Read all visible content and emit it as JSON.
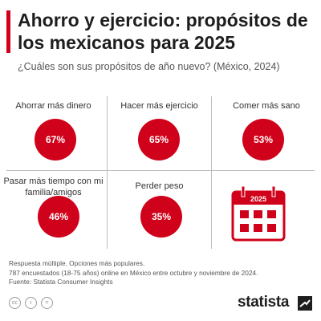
{
  "header": {
    "title": "Ahorro y ejercicio: propósitos de los mexicanos para 2025",
    "subtitle": "¿Cuáles son sus propósitos de año nuevo? (México, 2024)"
  },
  "chart_data": {
    "type": "bubble",
    "categories": [
      "Ahorrar más dinero",
      "Hacer más ejercicio",
      "Comer más sano",
      "Pasar más tiempo con mi familia/amigos",
      "Perder peso"
    ],
    "values": [
      67,
      65,
      53,
      46,
      35
    ],
    "value_labels": [
      "67%",
      "65%",
      "53%",
      "46%",
      "35%"
    ],
    "unit": "%",
    "color": "#d0021b"
  },
  "calendar": {
    "year_label": "2025"
  },
  "notes": {
    "line1": "Respuesta múltiple. Opciones más populares.",
    "line2": "787 encuestados (18-75 años) online en México entre octubre y noviembre de 2024.",
    "line3": "Fuente: Statista Consumer Insights"
  },
  "footer": {
    "icons": [
      "cc-icon",
      "person-icon",
      "equals-icon"
    ],
    "icon_glyphs": [
      "cc",
      "i",
      "="
    ],
    "brand": "statista"
  }
}
